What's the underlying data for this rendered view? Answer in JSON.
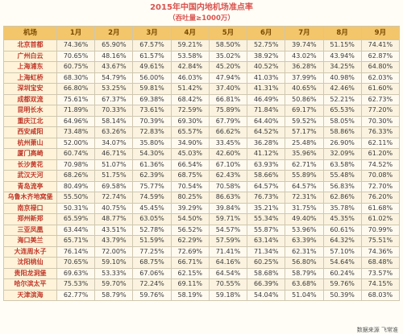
{
  "title": "2015年中国内地机场准点率",
  "subtitle": "（吞吐量≥1000万）",
  "footer": "数据来源 飞常准",
  "columns": [
    "机场",
    "1月",
    "2月",
    "3月",
    "4月",
    "5月",
    "6月",
    "7月",
    "8月",
    "9月"
  ],
  "rows": [
    [
      "北京首都",
      "74.36%",
      "65.90%",
      "67.57%",
      "59.21%",
      "58.50%",
      "52.75%",
      "39.74%",
      "51.15%",
      "74.41%"
    ],
    [
      "广州白云",
      "70.65%",
      "48.16%",
      "61.57%",
      "53.58%",
      "35.02%",
      "38.92%",
      "43.02%",
      "43.94%",
      "62.87%"
    ],
    [
      "上海浦东",
      "60.75%",
      "43.67%",
      "49.61%",
      "42.84%",
      "45.20%",
      "40.52%",
      "36.28%",
      "34.25%",
      "64.80%"
    ],
    [
      "上海虹桥",
      "68.30%",
      "54.79%",
      "56.00%",
      "46.03%",
      "47.94%",
      "41.03%",
      "37.99%",
      "40.98%",
      "62.03%"
    ],
    [
      "深圳宝安",
      "66.80%",
      "53.25%",
      "59.81%",
      "51.42%",
      "37.40%",
      "41.31%",
      "40.65%",
      "42.46%",
      "61.60%"
    ],
    [
      "成都双流",
      "75.61%",
      "67.37%",
      "69.38%",
      "68.42%",
      "66.81%",
      "46.49%",
      "50.86%",
      "52.21%",
      "62.73%"
    ],
    [
      "昆明长水",
      "71.89%",
      "70.33%",
      "73.61%",
      "72.59%",
      "75.89%",
      "71.84%",
      "69.17%",
      "65.53%",
      "77.20%"
    ],
    [
      "重庆江北",
      "64.96%",
      "58.14%",
      "70.39%",
      "69.30%",
      "67.79%",
      "64.40%",
      "59.52%",
      "58.05%",
      "70.30%"
    ],
    [
      "西安咸阳",
      "73.48%",
      "63.26%",
      "72.83%",
      "65.57%",
      "66.62%",
      "64.52%",
      "57.17%",
      "58.86%",
      "76.33%"
    ],
    [
      "杭州萧山",
      "52.00%",
      "34.07%",
      "35.80%",
      "34.90%",
      "33.45%",
      "36.28%",
      "25.48%",
      "26.90%",
      "62.11%"
    ],
    [
      "厦门高崎",
      "60.74%",
      "46.71%",
      "54.30%",
      "45.03%",
      "42.60%",
      "41.12%",
      "35.96%",
      "32.09%",
      "61.20%"
    ],
    [
      "长沙黄花",
      "70.98%",
      "51.07%",
      "61.36%",
      "66.54%",
      "67.10%",
      "63.93%",
      "62.71%",
      "63.58%",
      "74.52%"
    ],
    [
      "武汉天河",
      "68.26%",
      "51.75%",
      "62.39%",
      "68.75%",
      "62.43%",
      "58.66%",
      "55.89%",
      "55.48%",
      "70.08%"
    ],
    [
      "青岛流亭",
      "80.49%",
      "69.58%",
      "75.77%",
      "70.54%",
      "70.58%",
      "64.57%",
      "64.57%",
      "56.83%",
      "72.70%"
    ],
    [
      "乌鲁木齐地窝堡",
      "55.50%",
      "72.74%",
      "74.59%",
      "80.25%",
      "86.63%",
      "76.73%",
      "72.31%",
      "62.86%",
      "76.20%"
    ],
    [
      "南京禄口",
      "50.31%",
      "40.75%",
      "45.45%",
      "39.29%",
      "39.84%",
      "35.21%",
      "31.75%",
      "35.78%",
      "61.68%"
    ],
    [
      "郑州新郑",
      "65.59%",
      "48.77%",
      "63.05%",
      "54.50%",
      "59.71%",
      "55.34%",
      "49.40%",
      "45.35%",
      "61.02%"
    ],
    [
      "三亚凤凰",
      "63.44%",
      "43.51%",
      "52.78%",
      "56.52%",
      "54.57%",
      "55.87%",
      "53.96%",
      "60.61%",
      "70.99%"
    ],
    [
      "海口美兰",
      "65.71%",
      "43.79%",
      "51.59%",
      "62.29%",
      "57.59%",
      "63.14%",
      "63.39%",
      "64.32%",
      "75.51%"
    ],
    [
      "大连周水子",
      "76.14%",
      "72.00%",
      "77.25%",
      "72.69%",
      "71.41%",
      "71.34%",
      "62.31%",
      "57.10%",
      "74.36%"
    ],
    [
      "沈阳桃仙",
      "70.65%",
      "59.10%",
      "68.75%",
      "66.71%",
      "64.16%",
      "60.25%",
      "56.80%",
      "54.64%",
      "68.48%"
    ],
    [
      "贵阳龙洞堡",
      "69.63%",
      "53.33%",
      "67.06%",
      "62.15%",
      "64.54%",
      "58.68%",
      "58.79%",
      "60.24%",
      "73.57%"
    ],
    [
      "哈尔滨太平",
      "75.53%",
      "59.70%",
      "72.24%",
      "69.11%",
      "70.55%",
      "66.39%",
      "63.68%",
      "59.76%",
      "74.15%"
    ],
    [
      "天津滨海",
      "62.77%",
      "58.79%",
      "59.76%",
      "58.19%",
      "59.18%",
      "54.04%",
      "51.04%",
      "50.39%",
      "68.03%"
    ]
  ]
}
